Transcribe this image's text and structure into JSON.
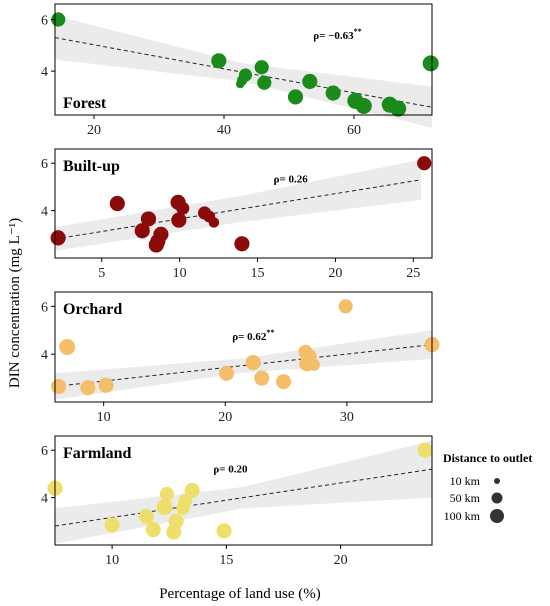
{
  "figure": {
    "ylabel": "DIN concentration (mg L⁻¹)",
    "xlabel": "Percentage of land use (%)",
    "legend": {
      "title": "Distance to outlet",
      "items": [
        "10 km",
        "50 km",
        "100 km"
      ]
    }
  },
  "chart_data": [
    {
      "type": "scatter",
      "label": "Forest",
      "rho": "ρ= −0.63",
      "rho_sig": "**",
      "color": "#1a8a1a",
      "xlim": [
        14,
        72
      ],
      "ylim": [
        2.3,
        6.6
      ],
      "xticks": [
        20,
        40,
        60
      ],
      "yticks": [
        4,
        6
      ],
      "fit": {
        "x": [
          14,
          72
        ],
        "y": [
          5.3,
          2.6
        ]
      },
      "band_halfwidth": [
        0.85,
        0.35,
        0.8
      ],
      "points": [
        {
          "x": 14.5,
          "y": 6.0,
          "s": 50
        },
        {
          "x": 39.2,
          "y": 4.4,
          "s": 60
        },
        {
          "x": 42.5,
          "y": 3.5,
          "s": 10
        },
        {
          "x": 42.8,
          "y": 3.65,
          "s": 20
        },
        {
          "x": 43.3,
          "y": 3.85,
          "s": 40
        },
        {
          "x": 45.8,
          "y": 4.15,
          "s": 50
        },
        {
          "x": 46.2,
          "y": 3.55,
          "s": 50
        },
        {
          "x": 51.0,
          "y": 3.0,
          "s": 60
        },
        {
          "x": 53.2,
          "y": 3.6,
          "s": 60
        },
        {
          "x": 56.8,
          "y": 3.15,
          "s": 60
        },
        {
          "x": 60.2,
          "y": 2.85,
          "s": 70
        },
        {
          "x": 61.5,
          "y": 2.65,
          "s": 70
        },
        {
          "x": 65.5,
          "y": 2.7,
          "s": 70
        },
        {
          "x": 66.8,
          "y": 2.55,
          "s": 70
        },
        {
          "x": 71.8,
          "y": 4.3,
          "s": 70
        }
      ]
    },
    {
      "type": "scatter",
      "label": "Built-up",
      "rho": "ρ= 0.26",
      "rho_sig": "",
      "color": "#8b0a0a",
      "xlim": [
        2,
        26.2
      ],
      "ylim": [
        2.0,
        6.6
      ],
      "xticks": [
        5,
        10,
        15,
        20,
        25
      ],
      "yticks": [
        4,
        6
      ],
      "fit": {
        "x": [
          2,
          25.5
        ],
        "y": [
          2.8,
          5.3
        ]
      },
      "band_halfwidth": [
        0.5,
        0.55,
        0.85
      ],
      "points": [
        {
          "x": 2.2,
          "y": 2.85,
          "s": 60
        },
        {
          "x": 6.0,
          "y": 4.3,
          "s": 60
        },
        {
          "x": 7.6,
          "y": 3.15,
          "s": 60
        },
        {
          "x": 8.0,
          "y": 3.65,
          "s": 60
        },
        {
          "x": 8.5,
          "y": 2.55,
          "s": 60
        },
        {
          "x": 8.6,
          "y": 2.7,
          "s": 60
        },
        {
          "x": 8.8,
          "y": 3.0,
          "s": 60
        },
        {
          "x": 9.9,
          "y": 4.35,
          "s": 60
        },
        {
          "x": 9.95,
          "y": 3.6,
          "s": 60
        },
        {
          "x": 10.2,
          "y": 4.1,
          "s": 40
        },
        {
          "x": 11.6,
          "y": 3.9,
          "s": 40
        },
        {
          "x": 11.9,
          "y": 3.75,
          "s": 30
        },
        {
          "x": 12.2,
          "y": 3.5,
          "s": 20
        },
        {
          "x": 14.0,
          "y": 2.6,
          "s": 60
        },
        {
          "x": 25.7,
          "y": 6.0,
          "s": 50
        }
      ]
    },
    {
      "type": "scatter",
      "label": "Orchard",
      "rho": "ρ= 0.62",
      "rho_sig": "**",
      "color": "#f5bf6a",
      "xlim": [
        6,
        37
      ],
      "ylim": [
        2.0,
        6.6
      ],
      "xticks": [
        10,
        20,
        30
      ],
      "yticks": [
        4,
        6
      ],
      "fit": {
        "x": [
          6,
          37
        ],
        "y": [
          2.65,
          4.4
        ]
      },
      "band_halfwidth": [
        0.55,
        0.3,
        0.6
      ],
      "points": [
        {
          "x": 6.3,
          "y": 2.65,
          "s": 60
        },
        {
          "x": 7.0,
          "y": 4.3,
          "s": 70
        },
        {
          "x": 8.7,
          "y": 2.6,
          "s": 60
        },
        {
          "x": 10.2,
          "y": 2.7,
          "s": 60
        },
        {
          "x": 20.1,
          "y": 3.2,
          "s": 60
        },
        {
          "x": 22.3,
          "y": 3.65,
          "s": 60
        },
        {
          "x": 23.0,
          "y": 3.0,
          "s": 60
        },
        {
          "x": 24.8,
          "y": 2.85,
          "s": 60
        },
        {
          "x": 26.6,
          "y": 4.1,
          "s": 50
        },
        {
          "x": 26.7,
          "y": 3.6,
          "s": 60
        },
        {
          "x": 26.9,
          "y": 3.9,
          "s": 60
        },
        {
          "x": 27.0,
          "y": 3.7,
          "s": 40
        },
        {
          "x": 27.3,
          "y": 3.55,
          "s": 30
        },
        {
          "x": 29.9,
          "y": 6.0,
          "s": 50
        },
        {
          "x": 37.0,
          "y": 4.4,
          "s": 60
        }
      ]
    },
    {
      "type": "scatter",
      "label": "Farmland",
      "rho": "ρ= 0.20",
      "rho_sig": "",
      "color": "#eedf6c",
      "xlim": [
        7.5,
        24
      ],
      "ylim": [
        2.0,
        6.6
      ],
      "xticks": [
        10,
        15,
        20
      ],
      "yticks": [
        4,
        6
      ],
      "fit": {
        "x": [
          7.5,
          24
        ],
        "y": [
          2.8,
          5.2
        ]
      },
      "band_halfwidth": [
        0.75,
        0.45,
        1.2
      ],
      "points": [
        {
          "x": 7.5,
          "y": 4.4,
          "s": 60
        },
        {
          "x": 10.0,
          "y": 2.85,
          "s": 60
        },
        {
          "x": 11.5,
          "y": 3.2,
          "s": 60
        },
        {
          "x": 11.8,
          "y": 2.65,
          "s": 60
        },
        {
          "x": 12.3,
          "y": 3.6,
          "s": 70
        },
        {
          "x": 12.4,
          "y": 4.15,
          "s": 50
        },
        {
          "x": 12.7,
          "y": 2.55,
          "s": 60
        },
        {
          "x": 12.8,
          "y": 3.0,
          "s": 60
        },
        {
          "x": 13.1,
          "y": 3.55,
          "s": 40
        },
        {
          "x": 13.2,
          "y": 3.85,
          "s": 50
        },
        {
          "x": 13.5,
          "y": 4.3,
          "s": 60
        },
        {
          "x": 14.9,
          "y": 2.6,
          "s": 60
        },
        {
          "x": 23.7,
          "y": 6.0,
          "s": 60
        }
      ]
    }
  ]
}
